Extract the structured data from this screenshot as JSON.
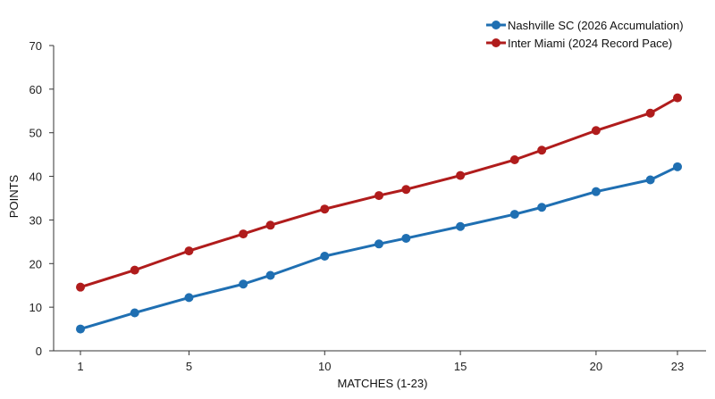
{
  "chart_data": {
    "type": "line",
    "title": "",
    "xlabel": "MATCHES (1-23)",
    "ylabel": "POINTS",
    "xlim": [
      1,
      23
    ],
    "ylim": [
      0,
      70
    ],
    "x_ticks": [
      1,
      5,
      10,
      15,
      20,
      23
    ],
    "y_ticks": [
      0,
      10,
      20,
      30,
      40,
      50,
      60,
      70
    ],
    "grid": false,
    "legend_position": "top-right",
    "series": [
      {
        "name": "Nashville SC (2026 Accumulation)",
        "color": "#1f6fb2",
        "x": [
          1,
          3,
          5,
          7,
          8,
          10,
          12,
          13,
          15,
          17,
          18,
          20,
          22,
          23
        ],
        "values": [
          5,
          8.7,
          12.2,
          15.3,
          17.3,
          21.7,
          24.5,
          25.8,
          28.5,
          31.3,
          32.9,
          36.5,
          39.2,
          42.2
        ]
      },
      {
        "name": "Inter Miami (2024 Record Pace)",
        "color": "#b01c1c",
        "x": [
          1,
          3,
          5,
          7,
          8,
          10,
          12,
          13,
          15,
          17,
          18,
          20,
          22,
          23
        ],
        "values": [
          14.6,
          18.5,
          22.9,
          26.8,
          28.8,
          32.5,
          35.6,
          37,
          40.2,
          43.8,
          46,
          50.5,
          54.5,
          58
        ]
      }
    ]
  }
}
